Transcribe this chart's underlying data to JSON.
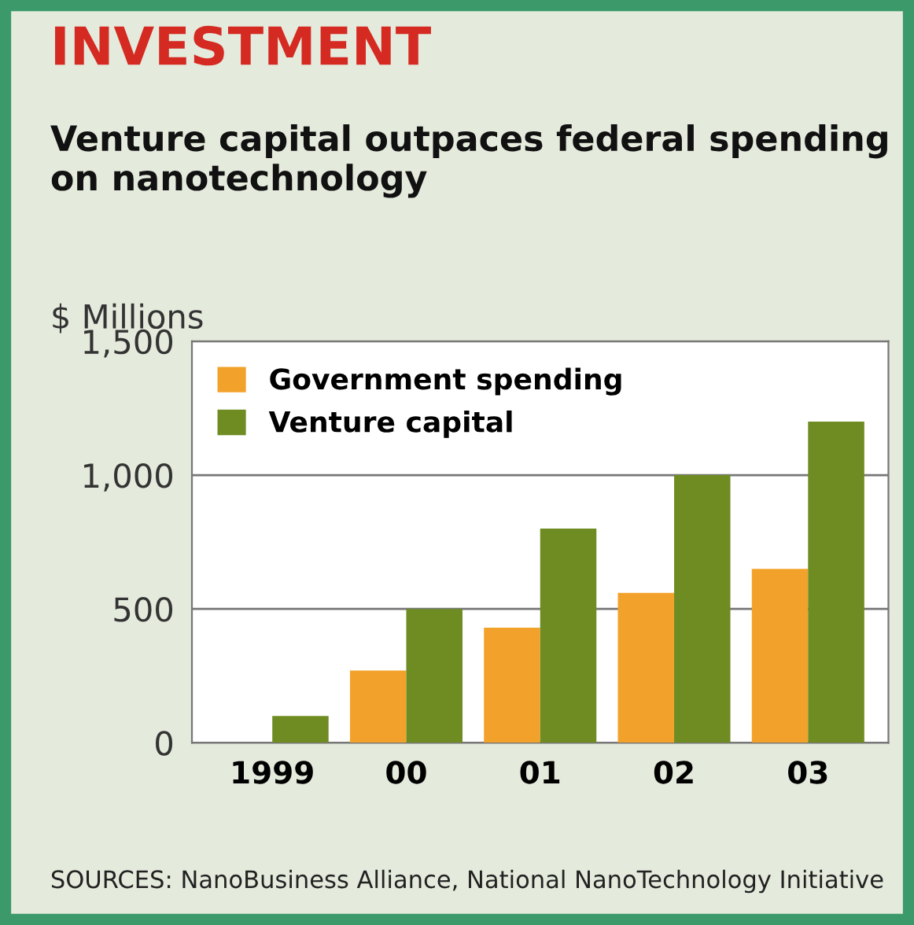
{
  "chart_data": {
    "type": "bar",
    "title": "INVESTMENT",
    "subtitle": "Venture capital outpaces federal spending on nanotechnology",
    "ylabel": "$ Millions",
    "categories": [
      "1999",
      "00",
      "01",
      "02",
      "03"
    ],
    "series": [
      {
        "name": "Government spending",
        "color": "#f2a22a",
        "values": [
          null,
          270,
          430,
          560,
          650
        ]
      },
      {
        "name": "Venture capital",
        "color": "#6e8c22",
        "values": [
          100,
          500,
          800,
          1000,
          1200
        ]
      }
    ],
    "ylim": [
      0,
      1500
    ],
    "yticks": [
      {
        "value": 0,
        "label": "0"
      },
      {
        "value": 500,
        "label": "500"
      },
      {
        "value": 1000,
        "label": "1,000"
      },
      {
        "value": 1500,
        "label": "1,500"
      }
    ],
    "grid": "y",
    "legend": "top left",
    "annotations": [
      "SOURCES: NanoBusiness Alliance, National NanoTechnology Initiative"
    ]
  }
}
